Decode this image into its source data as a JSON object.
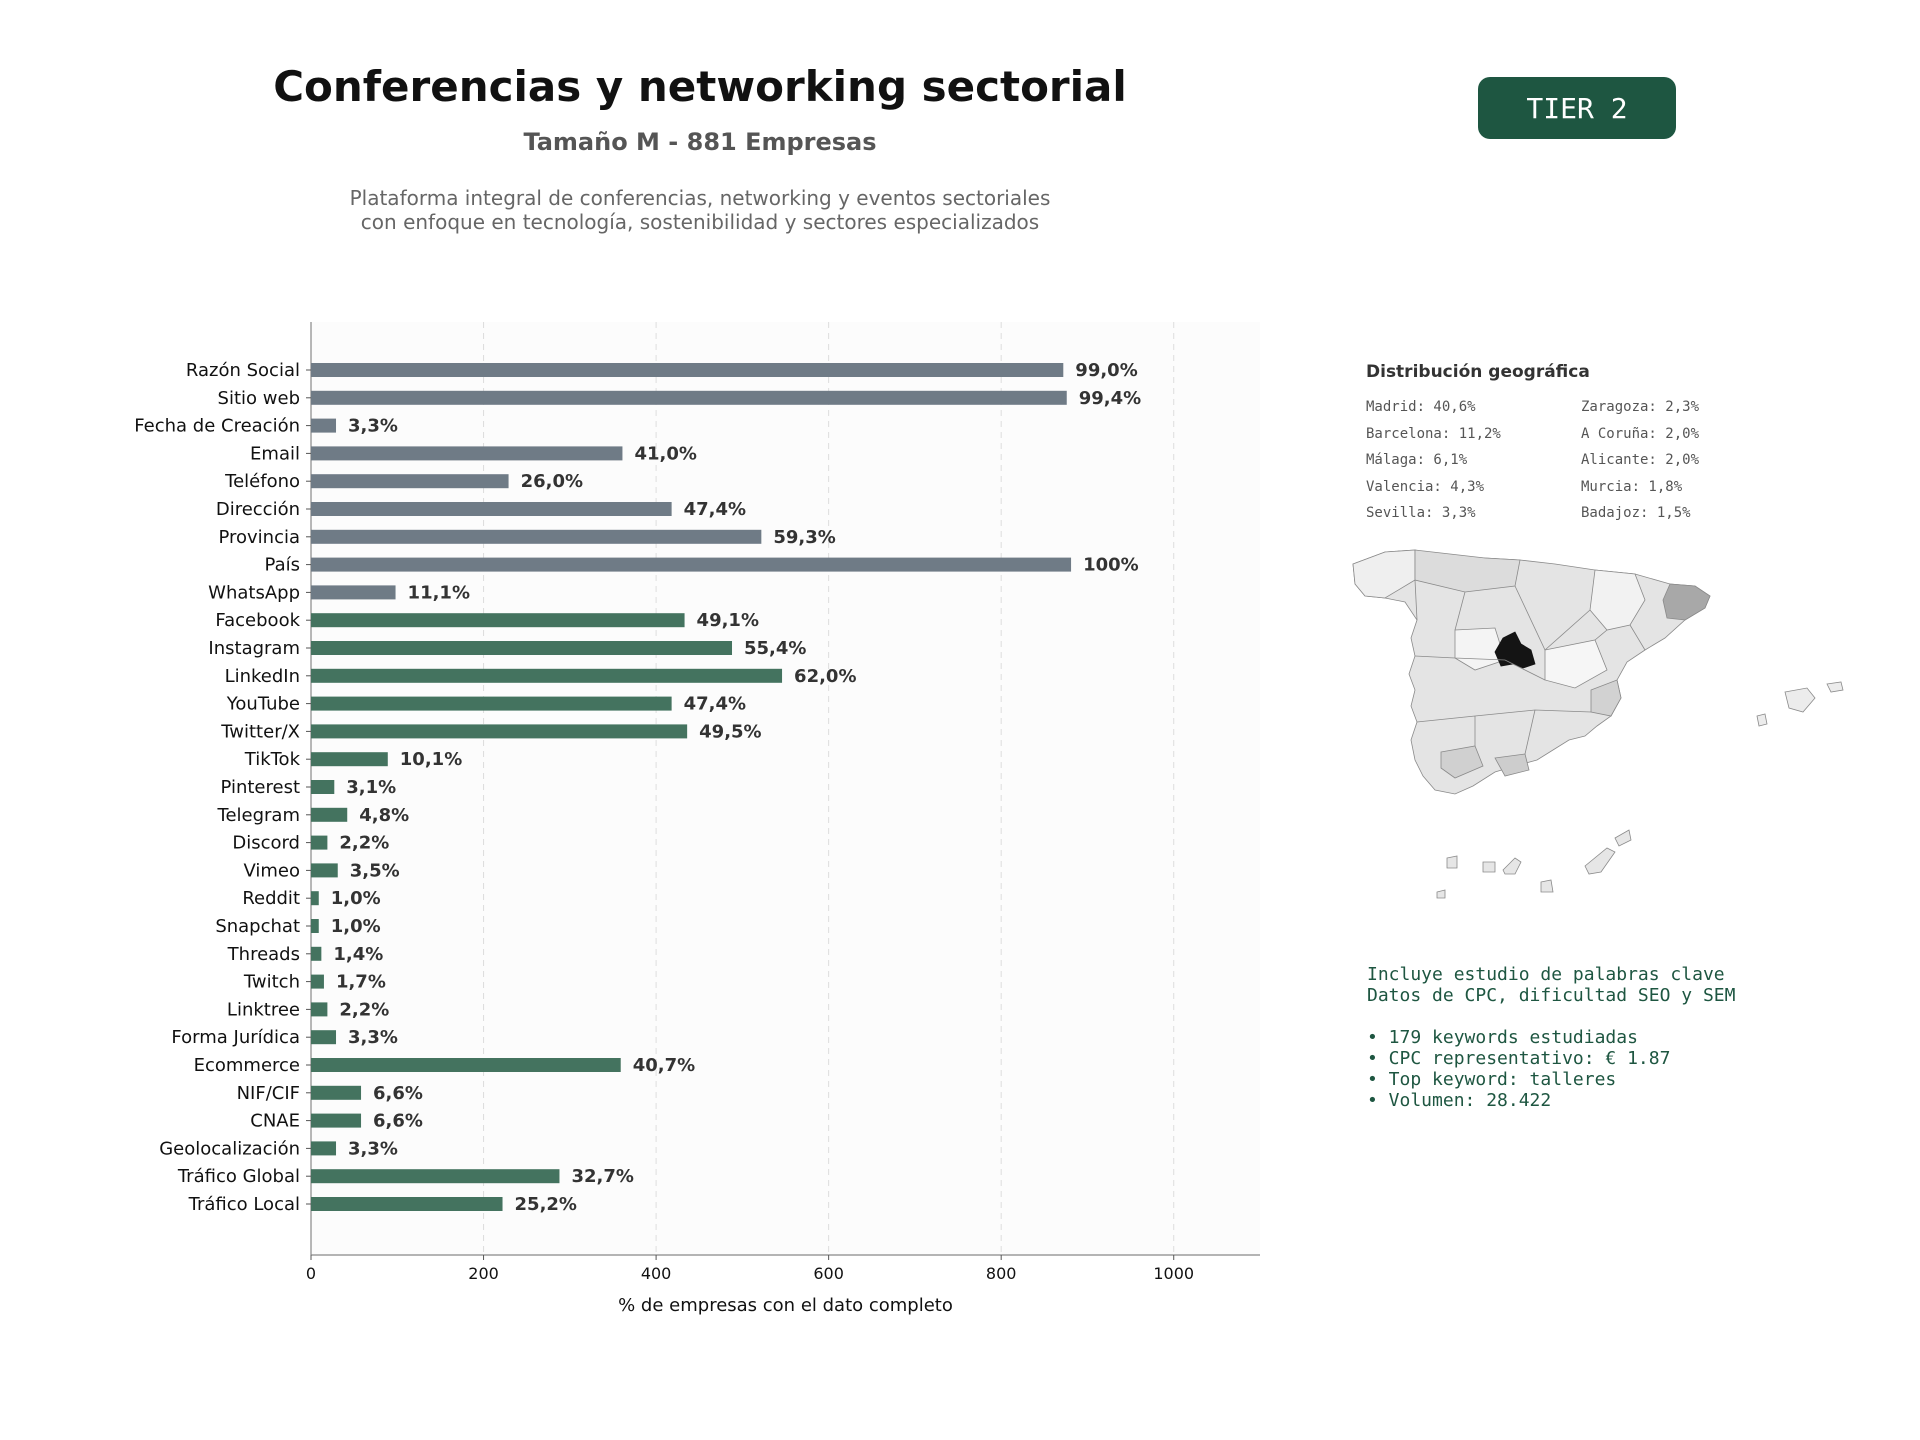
{
  "header": {
    "title": "Conferencias y networking sectorial",
    "subtitle": "Tamaño M - 881 Empresas",
    "description_line1": "Plataforma integral de conferencias, networking y eventos sectoriales",
    "description_line2": "con enfoque en tecnología, sostenibilidad y sectores especializados",
    "tier": "TIER 2"
  },
  "chart_data": {
    "type": "bar",
    "orientation": "horizontal",
    "xlabel": "% de empresas con el dato completo",
    "xlim": [
      0,
      1100
    ],
    "xticks": [
      0,
      200,
      400,
      600,
      800,
      1000
    ],
    "grid": "vertical dashed",
    "colors": {
      "basic": "#6f7b86",
      "digital": "#44735f"
    },
    "categories": [
      "Razón Social",
      "Sitio web",
      "Fecha de Creación",
      "Email",
      "Teléfono",
      "Dirección",
      "Provincia",
      "País",
      "WhatsApp",
      "Facebook",
      "Instagram",
      "LinkedIn",
      "YouTube",
      "Twitter/X",
      "TikTok",
      "Pinterest",
      "Telegram",
      "Discord",
      "Vimeo",
      "Reddit",
      "Snapchat",
      "Threads",
      "Twitch",
      "Linktree",
      "Forma Jurídica",
      "Ecommerce",
      "NIF/CIF",
      "CNAE",
      "Geolocalización",
      "Tráfico Global",
      "Tráfico Local"
    ],
    "values": [
      872,
      876,
      29,
      361,
      229,
      418,
      522,
      881,
      98,
      433,
      488,
      546,
      418,
      436,
      89,
      27,
      42,
      19,
      31,
      9,
      9,
      12,
      15,
      19,
      29,
      359,
      58,
      58,
      29,
      288,
      222
    ],
    "labels": [
      "99,0%",
      "99,4%",
      "3,3%",
      "41,0%",
      "26,0%",
      "47,4%",
      "59,3%",
      "100%",
      "11,1%",
      "49,1%",
      "55,4%",
      "62,0%",
      "47,4%",
      "49,5%",
      "10,1%",
      "3,1%",
      "4,8%",
      "2,2%",
      "3,5%",
      "1,0%",
      "1,0%",
      "1,4%",
      "1,7%",
      "2,2%",
      "3,3%",
      "40,7%",
      "6,6%",
      "6,6%",
      "3,3%",
      "32,7%",
      "25,2%"
    ],
    "groups": [
      "basic",
      "basic",
      "basic",
      "basic",
      "basic",
      "basic",
      "basic",
      "basic",
      "basic",
      "digital",
      "digital",
      "digital",
      "digital",
      "digital",
      "digital",
      "digital",
      "digital",
      "digital",
      "digital",
      "digital",
      "digital",
      "digital",
      "digital",
      "digital",
      "digital",
      "digital",
      "digital",
      "digital",
      "digital",
      "digital",
      "digital"
    ]
  },
  "geo": {
    "title": "Distribución geográfica",
    "items": [
      "Madrid: 40,6%",
      "Zaragoza: 2,3%",
      "Barcelona: 11,2%",
      "A Coruña: 2,0%",
      "Málaga: 6,1%",
      "Alicante: 2,0%",
      "Valencia: 4,3%",
      "Murcia: 1,8%",
      "Sevilla: 3,3%",
      "Badajoz: 1,5%"
    ]
  },
  "seo": {
    "line1": "Incluye estudio de palabras clave",
    "line2": "Datos de CPC, dificultad SEO y SEM",
    "bullet1": "• 179 keywords estudiadas",
    "bullet2": "• CPC representativo: € 1.87",
    "bullet3": "• Top keyword: talleres",
    "bullet4": "• Volumen: 28.422"
  }
}
